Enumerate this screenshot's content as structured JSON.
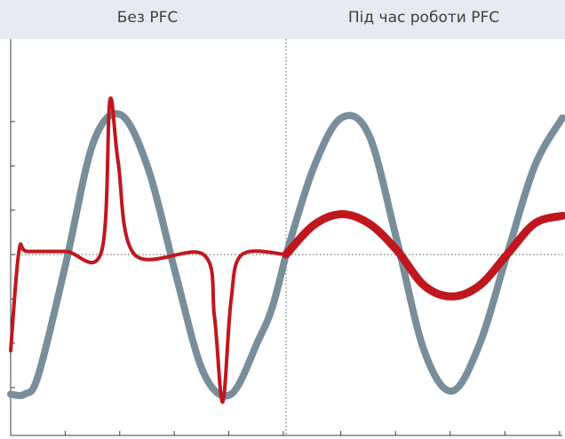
{
  "chart_data": {
    "type": "line",
    "panels": [
      {
        "title": "Без PFC",
        "x_range": [
          0,
          1
        ],
        "y_range": [
          -1,
          1
        ]
      },
      {
        "title": "Під час роботи PFC",
        "x_range": [
          0,
          1
        ],
        "y_range": [
          -1,
          1
        ]
      }
    ],
    "xlabel": "",
    "ylabel": "",
    "y_ticks": [
      -0.857,
      -0.571,
      -0.286,
      0,
      0.286,
      0.571,
      0.857
    ],
    "x_ticks_per_panel": 5,
    "grid": false,
    "reference_lines": [
      "y=0 dotted",
      "panel divider dotted"
    ],
    "colors": {
      "voltage": "#788e9b",
      "current": "#c0171f",
      "axis": "#3c3c3c",
      "header_bg": "#e7eaee"
    },
    "series": [
      {
        "color": "#788e9b",
        "panel": 0,
        "x": [
          0.0,
          0.05,
          0.1,
          0.2,
          0.3,
          0.4,
          0.5,
          0.6,
          0.7,
          0.8,
          0.9,
          0.95,
          1.0
        ],
        "y": [
          -0.9,
          -0.9,
          -0.78,
          -0.06,
          0.72,
          0.9,
          0.55,
          -0.13,
          -0.76,
          -0.9,
          -0.55,
          -0.34,
          0.0
        ]
      },
      {
        "color": "#c0171f",
        "panel": 0,
        "x": [
          0.0,
          0.03,
          0.06,
          0.2,
          0.33,
          0.36,
          0.39,
          0.45,
          0.7,
          0.74,
          0.77,
          0.8,
          0.84,
          1.0
        ],
        "y": [
          -0.62,
          0.02,
          0.02,
          0.02,
          0.02,
          0.99,
          0.6,
          0.0,
          0.0,
          -0.4,
          -0.95,
          -0.3,
          0.0,
          0.0
        ]
      },
      {
        "color": "#788e9b",
        "panel": 1,
        "x": [
          0.0,
          0.1,
          0.2,
          0.3,
          0.4,
          0.5,
          0.6,
          0.7,
          0.8,
          0.9,
          1.0
        ],
        "y": [
          0.0,
          0.56,
          0.88,
          0.77,
          0.1,
          -0.62,
          -0.88,
          -0.58,
          0.0,
          0.57,
          0.88
        ]
      },
      {
        "color": "#c0171f",
        "panel": 1,
        "x": [
          0.0,
          0.1,
          0.2,
          0.3,
          0.4,
          0.5,
          0.6,
          0.7,
          0.8,
          0.9,
          1.0
        ],
        "y": [
          0.0,
          0.19,
          0.26,
          0.2,
          0.03,
          -0.2,
          -0.27,
          -0.2,
          0.0,
          0.2,
          0.25
        ]
      }
    ]
  }
}
